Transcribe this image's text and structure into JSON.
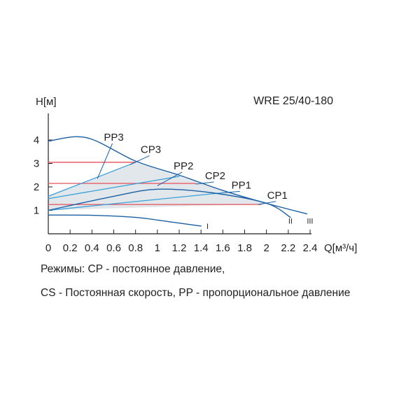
{
  "chart_data": {
    "type": "line",
    "title": "WRE 25/40-180",
    "ylabel": "H[м]",
    "xlabel": "Q[м³/ч]",
    "xlim": [
      0,
      2.4
    ],
    "ylim": [
      0,
      4.6
    ],
    "x_ticks": [
      "0",
      "0.2",
      "0.4",
      "0.6",
      "0.8",
      "1",
      "1.2",
      "1.4",
      "1.6",
      "1.8",
      "2",
      "2.2",
      "2.4"
    ],
    "y_ticks": [
      "1",
      "2",
      "3",
      "4"
    ],
    "shaded_region": [
      [
        0,
        1.0
      ],
      [
        0,
        1.6
      ],
      [
        0.8,
        3.05
      ],
      [
        2.0,
        1.25
      ],
      [
        1.4,
        1.2
      ],
      [
        0,
        1.0
      ]
    ],
    "series": [
      {
        "name": "I",
        "kind": "speed",
        "color": "#1a5fa6",
        "points": [
          [
            0,
            0.8
          ],
          [
            0.4,
            0.79
          ],
          [
            0.8,
            0.7
          ],
          [
            1.1,
            0.52
          ],
          [
            1.4,
            0.33
          ]
        ]
      },
      {
        "name": "II",
        "kind": "speed",
        "color": "#1a5fa6",
        "points": [
          [
            0,
            1.0
          ],
          [
            0.6,
            1.6
          ],
          [
            1.0,
            1.9
          ],
          [
            1.5,
            1.75
          ],
          [
            2.0,
            1.3
          ],
          [
            2.22,
            0.7
          ]
        ]
      },
      {
        "name": "III",
        "kind": "speed",
        "color": "#1a5fa6",
        "points": [
          [
            0,
            3.95
          ],
          [
            0.35,
            4.1
          ],
          [
            0.8,
            3.1
          ],
          [
            1.2,
            2.5
          ],
          [
            1.6,
            1.85
          ],
          [
            2.0,
            1.3
          ],
          [
            2.37,
            0.85
          ]
        ]
      },
      {
        "name": "PP1",
        "kind": "pp",
        "color": "#3aa0d8",
        "points": [
          [
            0,
            1.0
          ],
          [
            1.6,
            1.75
          ]
        ]
      },
      {
        "name": "PP2",
        "kind": "pp",
        "color": "#3aa0d8",
        "points": [
          [
            0,
            1.5
          ],
          [
            1.2,
            2.45
          ]
        ]
      },
      {
        "name": "PP3",
        "kind": "pp",
        "color": "#3aa0d8",
        "points": [
          [
            0,
            1.6
          ],
          [
            0.8,
            3.05
          ]
        ]
      },
      {
        "name": "CP1",
        "kind": "cp",
        "color": "#e8505b",
        "points": [
          [
            0,
            1.25
          ],
          [
            1.95,
            1.25
          ]
        ]
      },
      {
        "name": "CP2",
        "kind": "cp",
        "color": "#e8505b",
        "points": [
          [
            0,
            2.15
          ],
          [
            1.35,
            2.15
          ]
        ]
      },
      {
        "name": "CP3",
        "kind": "cp",
        "color": "#e8505b",
        "points": [
          [
            0,
            3.05
          ],
          [
            0.8,
            3.05
          ]
        ]
      }
    ],
    "annotations": [
      {
        "text": "PP3",
        "x": 0.6,
        "y": 3.97,
        "tx": 0.45,
        "ty": 2.35
      },
      {
        "text": "CP3",
        "x": 0.94,
        "y": 3.45,
        "tx": 0.75,
        "ty": 2.95
      },
      {
        "text": "PP2",
        "x": 1.24,
        "y": 2.75,
        "tx": 1.0,
        "ty": 2.05
      },
      {
        "text": "CP2",
        "x": 1.53,
        "y": 2.33,
        "tx": 1.35,
        "ty": 2.12
      },
      {
        "text": "PP1",
        "x": 1.77,
        "y": 1.93,
        "tx": 1.6,
        "ty": 1.75
      },
      {
        "text": "CP1",
        "x": 2.1,
        "y": 1.5,
        "tx": 1.92,
        "ty": 1.25
      }
    ],
    "curve_labels": [
      {
        "text": "I",
        "x": 1.45,
        "y": 0.33
      },
      {
        "text": "II",
        "x": 2.2,
        "y": 0.55
      },
      {
        "text": "III",
        "x": 2.37,
        "y": 0.55
      }
    ]
  },
  "legend": {
    "line1": "Режимы: CP - постоянное давление,",
    "line2": "CS - Постоянная скорость, PP - пропорциональное давление"
  },
  "colors": {
    "speed_curve": "#1a5fa6",
    "pp_curve": "#3aa0d8",
    "cp_curve": "#e8505b",
    "shading": "#dfe6ea",
    "axis": "#222222"
  }
}
